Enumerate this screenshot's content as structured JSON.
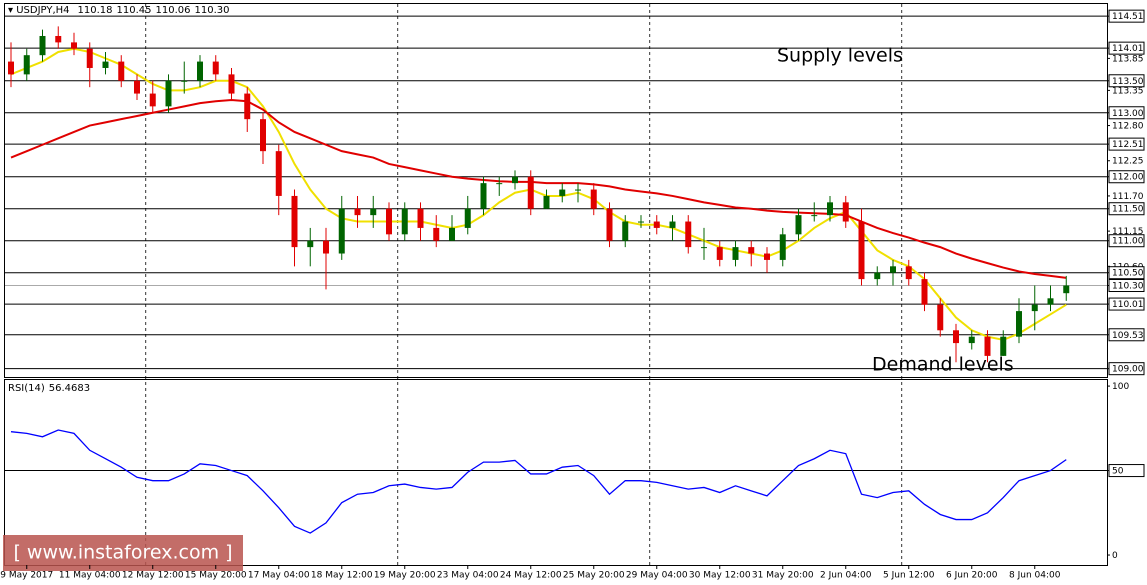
{
  "chart_data": [
    {
      "type": "candlestick",
      "title": "USDJPY,H4",
      "categories": [
        null,
        "9 May 2017",
        null,
        null,
        null,
        "11 May 04:00",
        null,
        null,
        null,
        "12 May 12:00",
        null,
        null,
        null,
        "15 May 20:00",
        null,
        null,
        null,
        "17 May 04:00",
        null,
        null,
        null,
        "18 May 12:00",
        null,
        null,
        null,
        "19 May 20:00",
        null,
        null,
        null,
        "23 May 04:00",
        null,
        null,
        null,
        "24 May 12:00",
        null,
        null,
        null,
        "25 May 20:00",
        null,
        null,
        null,
        "29 May 04:00",
        null,
        null,
        null,
        "30 May 12:00",
        null,
        null,
        null,
        "31 May 20:00",
        null,
        null,
        null,
        "2 Jun 04:00",
        null,
        null,
        null,
        "5 Jun 12:00",
        null,
        null,
        null,
        "6 Jun 20:00",
        null,
        null,
        null,
        "8 Jun 04:00",
        null,
        null
      ],
      "open": [
        113.8,
        113.6,
        113.9,
        114.2,
        114.1,
        114.0,
        113.7,
        113.8,
        113.5,
        113.3,
        113.1,
        113.5,
        113.5,
        113.8,
        113.6,
        113.3,
        112.9,
        112.4,
        111.7,
        110.9,
        111.0,
        110.8,
        111.5,
        111.4,
        111.5,
        111.1,
        111.5,
        111.2,
        111.0,
        111.2,
        111.5,
        111.9,
        111.9,
        112.0,
        111.5,
        111.7,
        111.8,
        111.8,
        111.5,
        111.0,
        111.3,
        111.3,
        111.2,
        111.3,
        110.9,
        110.9,
        110.7,
        110.9,
        110.8,
        110.7,
        111.1,
        111.4,
        111.4,
        111.6,
        111.3,
        110.4,
        110.5,
        110.6,
        110.4,
        110.0,
        109.6,
        109.4,
        109.5,
        109.2,
        109.5,
        109.9,
        110.0,
        110.18
      ],
      "high": [
        114.1,
        114.0,
        114.3,
        114.35,
        114.25,
        114.1,
        113.95,
        113.9,
        113.6,
        113.5,
        113.6,
        113.8,
        113.9,
        113.9,
        113.7,
        113.4,
        113.0,
        112.5,
        111.8,
        111.2,
        111.2,
        111.7,
        111.7,
        111.7,
        111.6,
        111.6,
        111.6,
        111.4,
        111.4,
        111.7,
        112.0,
        112.0,
        112.1,
        112.1,
        111.8,
        111.9,
        111.9,
        111.9,
        111.6,
        111.4,
        111.4,
        111.4,
        111.4,
        111.4,
        111.2,
        111.0,
        111.0,
        111.0,
        110.9,
        111.2,
        111.5,
        111.6,
        111.7,
        111.7,
        111.5,
        110.6,
        110.7,
        110.7,
        110.5,
        110.1,
        109.7,
        109.6,
        109.6,
        109.6,
        110.1,
        110.3,
        110.3,
        110.45
      ],
      "low": [
        113.4,
        113.5,
        113.8,
        114.0,
        113.9,
        113.4,
        113.6,
        113.4,
        113.2,
        113.0,
        113.0,
        113.3,
        113.4,
        113.5,
        113.2,
        112.7,
        112.2,
        111.4,
        110.6,
        110.6,
        110.24,
        110.7,
        111.2,
        111.2,
        111.0,
        111.0,
        111.0,
        110.9,
        111.0,
        111.1,
        111.4,
        111.7,
        111.8,
        111.4,
        111.5,
        111.6,
        111.6,
        111.4,
        110.9,
        110.9,
        111.2,
        111.1,
        111.0,
        110.8,
        110.7,
        110.6,
        110.6,
        110.6,
        110.5,
        110.6,
        111.0,
        111.3,
        111.3,
        111.2,
        110.3,
        110.3,
        110.3,
        110.3,
        109.9,
        109.5,
        109.1,
        109.3,
        109.1,
        109.2,
        109.4,
        109.6,
        109.9,
        110.06
      ],
      "close": [
        113.6,
        113.9,
        114.2,
        114.1,
        114.0,
        113.7,
        113.8,
        113.5,
        113.3,
        113.1,
        113.5,
        113.5,
        113.8,
        113.6,
        113.3,
        112.9,
        112.4,
        111.7,
        110.9,
        111.0,
        110.8,
        111.5,
        111.4,
        111.5,
        111.1,
        111.5,
        111.2,
        111.0,
        111.2,
        111.5,
        111.9,
        111.9,
        112.0,
        111.5,
        111.7,
        111.8,
        111.8,
        111.5,
        111.0,
        111.3,
        111.3,
        111.2,
        111.3,
        110.9,
        110.9,
        110.7,
        110.9,
        110.8,
        110.7,
        111.1,
        111.4,
        111.4,
        111.6,
        111.3,
        110.4,
        110.5,
        110.6,
        110.4,
        110.0,
        109.6,
        109.4,
        109.5,
        109.2,
        109.5,
        109.9,
        110.0,
        110.1,
        110.3
      ],
      "up_color": "#006400",
      "down_color": "#e00000",
      "lines": [
        {
          "color": "#f0e000",
          "values": [
            113.6,
            113.7,
            113.8,
            113.95,
            114.0,
            113.95,
            113.85,
            113.75,
            113.6,
            113.45,
            113.35,
            113.35,
            113.4,
            113.5,
            113.5,
            113.4,
            113.1,
            112.7,
            112.2,
            111.8,
            111.5,
            111.35,
            111.3,
            111.3,
            111.3,
            111.3,
            111.3,
            111.25,
            111.2,
            111.25,
            111.4,
            111.6,
            111.75,
            111.8,
            111.7,
            111.7,
            111.75,
            111.65,
            111.45,
            111.3,
            111.25,
            111.25,
            111.2,
            111.1,
            111.0,
            110.9,
            110.85,
            110.8,
            110.75,
            110.85,
            111.0,
            111.2,
            111.35,
            111.45,
            111.15,
            110.85,
            110.7,
            110.6,
            110.4,
            110.1,
            109.8,
            109.6,
            109.5,
            109.45,
            109.55,
            109.7,
            109.85,
            110.0
          ]
        },
        {
          "color": "#e00000",
          "values": [
            112.3,
            112.4,
            112.5,
            112.6,
            112.7,
            112.8,
            112.85,
            112.9,
            112.95,
            113.0,
            113.05,
            113.1,
            113.15,
            113.18,
            113.2,
            113.18,
            113.05,
            112.85,
            112.7,
            112.6,
            112.5,
            112.4,
            112.35,
            112.3,
            112.2,
            112.15,
            112.1,
            112.05,
            112.0,
            111.97,
            111.95,
            111.93,
            111.92,
            111.92,
            111.9,
            111.9,
            111.9,
            111.88,
            111.85,
            111.8,
            111.77,
            111.74,
            111.7,
            111.65,
            111.6,
            111.56,
            111.52,
            111.5,
            111.47,
            111.45,
            111.44,
            111.43,
            111.42,
            111.4,
            111.3,
            111.2,
            111.12,
            111.05,
            110.97,
            110.9,
            110.8,
            110.72,
            110.65,
            110.58,
            110.52,
            110.48,
            110.45,
            110.42
          ]
        }
      ],
      "ylim": [
        108.87,
        114.7
      ],
      "yticks": [
        113.85,
        113.35,
        {
          "value": 112.8,
          "label": "112.80"
        },
        112.25,
        {
          "value": 111.7,
          "label": "111.70"
        },
        111.15,
        {
          "value": 110.6,
          "label": "110.60"
        }
      ],
      "levels": [
        114.51,
        114.01,
        {
          "value": 113.5,
          "label": "113.50"
        },
        {
          "value": 113,
          "label": "113.00"
        },
        112.51,
        {
          "value": 112,
          "label": "112.00"
        },
        {
          "value": 111.5,
          "label": "111.50"
        },
        {
          "value": 111,
          "label": "111.00"
        },
        {
          "value": 110.5,
          "label": "110.50"
        },
        110.01,
        109.53,
        {
          "value": 109,
          "label": "109.00"
        }
      ],
      "current_price": {
        "value": 110.3,
        "label": "110.30"
      },
      "annotations": [
        "Supply levels",
        "Demand levels"
      ],
      "watermark": "[ www.instaforex.com ]"
    },
    {
      "type": "line",
      "title": "RSI(14)",
      "color": "#0000ff",
      "values": [
        73,
        72,
        70,
        74,
        72,
        62,
        57,
        52,
        46,
        44,
        44,
        48,
        54,
        53,
        50,
        47,
        38,
        28,
        17,
        13,
        19,
        31,
        36,
        37,
        41,
        42,
        40,
        39,
        40,
        49,
        55,
        55,
        56,
        48,
        48,
        52,
        53,
        47,
        36,
        44,
        44,
        43,
        41,
        39,
        40,
        37,
        41,
        38,
        35,
        44,
        53,
        57,
        62,
        60,
        36,
        34,
        37,
        38,
        30,
        24,
        21,
        21,
        25,
        34,
        44,
        47,
        50,
        56.4683
      ],
      "ylim": [
        -5.9,
        103.6
      ],
      "yticks": [
        100,
        50,
        0
      ]
    }
  ]
}
